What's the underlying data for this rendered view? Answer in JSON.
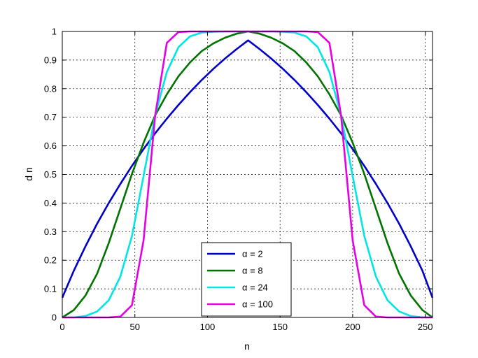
{
  "chart_data": {
    "type": "line",
    "title": "",
    "xlabel": "n",
    "ylabel": "d n",
    "xlim": [
      0,
      255
    ],
    "ylim": [
      0,
      1
    ],
    "xticks": [
      0,
      50,
      100,
      150,
      200,
      250
    ],
    "yticks": [
      0,
      0.1,
      0.2,
      0.3,
      0.4,
      0.5,
      0.6,
      0.7,
      0.8,
      0.9,
      1
    ],
    "xtick_labels": [
      "0",
      "50",
      "100",
      "150",
      "200",
      "250"
    ],
    "ytick_labels": [
      "0",
      "0.1",
      "0.2",
      "0.3",
      "0.4",
      "0.5",
      "0.6",
      "0.7",
      "0.8",
      "0.9",
      "1"
    ],
    "grid": true,
    "legend_position": "bottom-center",
    "x": [
      0,
      8,
      16,
      24,
      32,
      40,
      48,
      56,
      64,
      72,
      80,
      88,
      96,
      104,
      112,
      120,
      128,
      136,
      144,
      152,
      160,
      168,
      176,
      184,
      192,
      200,
      208,
      216,
      224,
      232,
      240,
      248,
      255
    ],
    "series": [
      {
        "name": "α = 2",
        "color": "#0000c8",
        "values": [
          0.069,
          0.164,
          0.249,
          0.328,
          0.4,
          0.467,
          0.53,
          0.589,
          0.644,
          0.695,
          0.743,
          0.788,
          0.83,
          0.869,
          0.905,
          0.938,
          0.969,
          0.938,
          0.905,
          0.869,
          0.83,
          0.788,
          0.743,
          0.695,
          0.644,
          0.589,
          0.53,
          0.467,
          0.4,
          0.328,
          0.249,
          0.164,
          0.069
        ]
      },
      {
        "name": "α = 8",
        "color": "#007300",
        "values": [
          0.0,
          0.026,
          0.077,
          0.153,
          0.26,
          0.381,
          0.502,
          0.611,
          0.707,
          0.78,
          0.843,
          0.892,
          0.931,
          0.958,
          0.978,
          0.992,
          1.0,
          0.992,
          0.978,
          0.958,
          0.931,
          0.892,
          0.843,
          0.78,
          0.707,
          0.611,
          0.502,
          0.381,
          0.26,
          0.153,
          0.077,
          0.026,
          0.0
        ]
      },
      {
        "name": "α = 24",
        "color": "#00e6e6",
        "values": [
          0.0,
          0.0,
          0.005,
          0.021,
          0.06,
          0.143,
          0.285,
          0.495,
          0.707,
          0.858,
          0.945,
          0.983,
          0.996,
          0.999,
          1.0,
          1.0,
          1.0,
          1.0,
          1.0,
          0.999,
          0.996,
          0.983,
          0.945,
          0.858,
          0.707,
          0.495,
          0.285,
          0.143,
          0.06,
          0.021,
          0.005,
          0.0,
          0.0
        ]
      },
      {
        "name": "α = 100",
        "color": "#e600e6",
        "values": [
          0.0,
          0.0,
          0.0,
          0.0,
          0.0,
          0.003,
          0.043,
          0.27,
          0.707,
          0.96,
          0.998,
          1.0,
          1.0,
          1.0,
          1.0,
          1.0,
          1.0,
          1.0,
          1.0,
          1.0,
          1.0,
          1.0,
          0.998,
          0.96,
          0.707,
          0.27,
          0.043,
          0.003,
          0.0,
          0.0,
          0.0,
          0.0,
          0.0
        ]
      }
    ]
  }
}
